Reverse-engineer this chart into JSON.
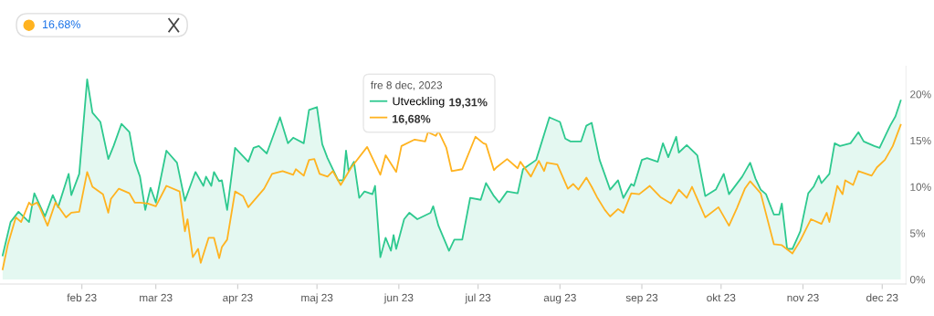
{
  "chart_data": {
    "type": "line",
    "xlim": [
      "2023-01-01",
      "2023-12-10"
    ],
    "xticks": [
      {
        "value": "2023-02-01",
        "label": "feb 23"
      },
      {
        "value": "2023-03-01",
        "label": "mar 23"
      },
      {
        "value": "2023-04-01",
        "label": "apr 23"
      },
      {
        "value": "2023-05-01",
        "label": "maj 23"
      },
      {
        "value": "2023-06-01",
        "label": "jun 23"
      },
      {
        "value": "2023-07-01",
        "label": "jul 23"
      },
      {
        "value": "2023-08-01",
        "label": "aug 23"
      },
      {
        "value": "2023-09-01",
        "label": "sep 23"
      },
      {
        "value": "2023-10-01",
        "label": "okt 23"
      },
      {
        "value": "2023-11-01",
        "label": "nov 23"
      },
      {
        "value": "2023-12-01",
        "label": "dec 23"
      }
    ],
    "ylim": [
      -0.5,
      23
    ],
    "yticks": [
      {
        "value": 0,
        "label": "0%"
      },
      {
        "value": 5,
        "label": "5%"
      },
      {
        "value": 10,
        "label": "10%"
      },
      {
        "value": 15,
        "label": "15%"
      },
      {
        "value": 20,
        "label": "20%"
      }
    ],
    "grid": false,
    "legend": "top",
    "legend_title": "fre 8 dec, 2023",
    "marker": "none",
    "line_style": "solid",
    "annotations": [
      "16,68%",
      "19,31%",
      "16,68%"
    ],
    "series": [
      {
        "name": "Utveckling",
        "type": "area",
        "color": "#2ec98f",
        "x": [
          "2023-01-02",
          "2023-01-05",
          "2023-01-08",
          "2023-01-12",
          "2023-01-14",
          "2023-01-18",
          "2023-01-21",
          "2023-01-23",
          "2023-01-27",
          "2023-01-28",
          "2023-01-31",
          "2023-02-03",
          "2023-02-05",
          "2023-02-08",
          "2023-02-11",
          "2023-02-13",
          "2023-02-16",
          "2023-02-19",
          "2023-02-21",
          "2023-02-23",
          "2023-02-25",
          "2023-02-27",
          "2023-03-01",
          "2023-03-05",
          "2023-03-09",
          "2023-03-12",
          "2023-03-16",
          "2023-03-19",
          "2023-03-20",
          "2023-03-22",
          "2023-03-23",
          "2023-03-25",
          "2023-03-26",
          "2023-03-28",
          "2023-03-31",
          "2023-04-05",
          "2023-04-07",
          "2023-04-09",
          "2023-04-12",
          "2023-04-17",
          "2023-04-20",
          "2023-04-22",
          "2023-04-26",
          "2023-04-28",
          "2023-05-01",
          "2023-05-03",
          "2023-05-05",
          "2023-05-09",
          "2023-05-11",
          "2023-05-12",
          "2023-05-13",
          "2023-05-15",
          "2023-05-17",
          "2023-05-19",
          "2023-05-22",
          "2023-05-23",
          "2023-05-25",
          "2023-05-27",
          "2023-05-29",
          "2023-05-30",
          "2023-05-31",
          "2023-06-03",
          "2023-06-05",
          "2023-06-08",
          "2023-06-13",
          "2023-06-14",
          "2023-06-16",
          "2023-06-20",
          "2023-06-22",
          "2023-06-25",
          "2023-06-28",
          "2023-07-02",
          "2023-07-04",
          "2023-07-07",
          "2023-07-09",
          "2023-07-12",
          "2023-07-16",
          "2023-07-18",
          "2023-07-23",
          "2023-07-28",
          "2023-08-01",
          "2023-08-03",
          "2023-08-05",
          "2023-08-09",
          "2023-08-11",
          "2023-08-13",
          "2023-08-16",
          "2023-08-20",
          "2023-08-23",
          "2023-08-25",
          "2023-08-28",
          "2023-08-29",
          "2023-09-01",
          "2023-09-03",
          "2023-09-07",
          "2023-09-09",
          "2023-09-11",
          "2023-09-14",
          "2023-09-15",
          "2023-09-18",
          "2023-09-22",
          "2023-09-25",
          "2023-09-29",
          "2023-10-02",
          "2023-10-04",
          "2023-10-09",
          "2023-10-12",
          "2023-10-14",
          "2023-10-16",
          "2023-10-18",
          "2023-10-21",
          "2023-10-23",
          "2023-10-24",
          "2023-10-26",
          "2023-10-28",
          "2023-10-31",
          "2023-11-03",
          "2023-11-05",
          "2023-11-07",
          "2023-11-08",
          "2023-11-11",
          "2023-11-13",
          "2023-11-15",
          "2023-11-19",
          "2023-11-22",
          "2023-11-24",
          "2023-11-28",
          "2023-11-30",
          "2023-12-04",
          "2023-12-06",
          "2023-12-08"
        ],
        "values": [
          2.6,
          6.2,
          7.3,
          6.2,
          9.3,
          6.8,
          9.1,
          7.8,
          11.4,
          9.1,
          11.4,
          21.6,
          18.0,
          17.0,
          13.0,
          14.4,
          16.8,
          15.9,
          12.7,
          11.1,
          7.5,
          9.9,
          8.3,
          13.9,
          12.6,
          8.5,
          11.6,
          10.1,
          11.1,
          10.1,
          11.6,
          10.6,
          10.7,
          7.5,
          14.2,
          12.7,
          14.2,
          14.4,
          13.6,
          17.5,
          14.7,
          15.3,
          14.7,
          18.3,
          18.6,
          14.6,
          13.1,
          10.7,
          10.7,
          13.9,
          11.7,
          12.7,
          8.8,
          9.5,
          9.2,
          10.1,
          2.4,
          4.5,
          3.1,
          4.8,
          3.3,
          6.5,
          7.2,
          6.5,
          7.2,
          7.9,
          5.8,
          3.1,
          4.3,
          4.3,
          8.8,
          8.6,
          10.4,
          9.0,
          8.3,
          9.5,
          9.3,
          11.9,
          12.9,
          17.5,
          17.0,
          15.2,
          14.9,
          14.9,
          16.6,
          16.9,
          12.9,
          9.7,
          10.7,
          8.8,
          10.3,
          10.1,
          12.9,
          13.1,
          12.7,
          14.7,
          13.2,
          15.4,
          13.7,
          14.5,
          13.4,
          9.0,
          9.7,
          11.4,
          9.2,
          11.1,
          12.6,
          10.9,
          9.7,
          9.2,
          7.0,
          7.0,
          8.2,
          3.3,
          3.3,
          5.2,
          9.3,
          10.0,
          11.2,
          10.4,
          11.4,
          14.7,
          14.4,
          14.7,
          15.9,
          14.9,
          14.4,
          14.2,
          16.6,
          17.6,
          19.31
        ]
      },
      {
        "color": "#ffb320",
        "x": [
          "2023-01-02",
          "2023-01-04",
          "2023-01-07",
          "2023-01-09",
          "2023-01-12",
          "2023-01-13",
          "2023-01-15",
          "2023-01-16",
          "2023-01-19",
          "2023-01-22",
          "2023-01-26",
          "2023-01-28",
          "2023-01-31",
          "2023-02-03",
          "2023-02-05",
          "2023-02-09",
          "2023-02-11",
          "2023-02-12",
          "2023-02-15",
          "2023-02-19",
          "2023-02-21",
          "2023-02-23",
          "2023-02-26",
          "2023-03-01",
          "2023-03-05",
          "2023-03-10",
          "2023-03-12",
          "2023-03-13",
          "2023-03-15",
          "2023-03-17",
          "2023-03-18",
          "2023-03-21",
          "2023-03-23",
          "2023-03-25",
          "2023-03-26",
          "2023-03-28",
          "2023-03-31",
          "2023-04-03",
          "2023-04-05",
          "2023-04-11",
          "2023-04-14",
          "2023-04-18",
          "2023-04-22",
          "2023-04-23",
          "2023-04-26",
          "2023-04-28",
          "2023-04-30",
          "2023-05-02",
          "2023-05-05",
          "2023-05-07",
          "2023-05-10",
          "2023-05-14",
          "2023-05-20",
          "2023-05-25",
          "2023-05-27",
          "2023-05-31",
          "2023-06-02",
          "2023-06-07",
          "2023-06-11",
          "2023-06-12",
          "2023-06-15",
          "2023-06-16",
          "2023-06-19",
          "2023-06-21",
          "2023-06-25",
          "2023-06-30",
          "2023-07-03",
          "2023-07-04",
          "2023-07-07",
          "2023-07-08",
          "2023-07-12",
          "2023-07-16",
          "2023-07-17",
          "2023-07-21",
          "2023-07-24",
          "2023-07-26",
          "2023-07-27",
          "2023-07-31",
          "2023-08-04",
          "2023-08-06",
          "2023-08-08",
          "2023-08-11",
          "2023-08-13",
          "2023-08-15",
          "2023-08-18",
          "2023-08-20",
          "2023-08-23",
          "2023-08-25",
          "2023-08-28",
          "2023-08-31",
          "2023-09-04",
          "2023-09-08",
          "2023-09-12",
          "2023-09-15",
          "2023-09-18",
          "2023-09-20",
          "2023-09-25",
          "2023-09-30",
          "2023-10-04",
          "2023-10-07",
          "2023-10-10",
          "2023-10-12",
          "2023-10-16",
          "2023-10-21",
          "2023-10-24",
          "2023-10-28",
          "2023-10-31",
          "2023-11-04",
          "2023-11-08",
          "2023-11-10",
          "2023-11-11",
          "2023-11-14",
          "2023-11-16",
          "2023-11-17",
          "2023-11-20",
          "2023-11-22",
          "2023-11-27",
          "2023-11-29",
          "2023-12-02",
          "2023-12-05",
          "2023-12-08"
        ],
        "values": [
          1.1,
          3.8,
          6.7,
          6.2,
          8.3,
          8.0,
          8.3,
          7.8,
          5.8,
          8.3,
          6.7,
          7.2,
          7.3,
          11.6,
          10.0,
          9.2,
          7.2,
          8.7,
          9.8,
          9.3,
          8.3,
          8.3,
          8.2,
          7.9,
          10.1,
          9.5,
          5.2,
          6.5,
          2.4,
          3.3,
          1.8,
          4.5,
          4.5,
          2.3,
          3.5,
          4.3,
          9.5,
          9.0,
          7.8,
          9.8,
          11.4,
          11.7,
          11.3,
          11.9,
          11.2,
          12.9,
          13.0,
          11.4,
          11.1,
          11.7,
          10.2,
          12.1,
          14.3,
          11.3,
          13.4,
          11.6,
          14.4,
          15.1,
          14.9,
          15.9,
          15.5,
          16.0,
          14.2,
          11.7,
          11.9,
          15.4,
          14.7,
          14.6,
          11.8,
          12.1,
          13.0,
          12.0,
          12.7,
          11.1,
          12.8,
          11.7,
          12.6,
          12.4,
          9.8,
          10.3,
          9.7,
          11.0,
          10.0,
          8.9,
          7.5,
          6.8,
          7.6,
          7.2,
          9.3,
          9.2,
          10.1,
          8.9,
          8.2,
          9.7,
          8.8,
          10.0,
          6.7,
          7.8,
          5.8,
          7.7,
          9.8,
          10.6,
          9.3,
          3.8,
          3.7,
          2.8,
          4.2,
          6.5,
          6.0,
          7.2,
          6.2,
          10.1,
          9.2,
          10.7,
          10.2,
          11.7,
          11.2,
          12.1,
          12.9,
          14.4,
          16.68
        ]
      }
    ]
  }
}
